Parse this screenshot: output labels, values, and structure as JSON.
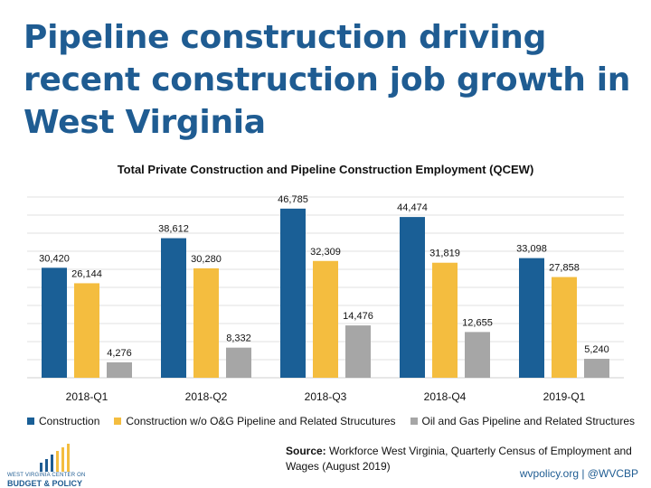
{
  "headline": "Pipeline construction driving recent construction job growth in West Virginia",
  "chart_data": {
    "type": "bar",
    "title": "Total Private Construction and Pipeline Construction Employment (QCEW)",
    "categories": [
      "2018-Q1",
      "2018-Q2",
      "2018-Q3",
      "2018-Q4",
      "2019-Q1"
    ],
    "series": [
      {
        "name": "Construction",
        "color": "#1a5f96",
        "values": [
          30420,
          38612,
          46785,
          44474,
          33098
        ],
        "labels": [
          "30,420",
          "38,612",
          "46,785",
          "44,474",
          "33,098"
        ]
      },
      {
        "name": "Construction w/o O&G Pipeline and Related Strucutures",
        "color": "#f4bd3f",
        "values": [
          26144,
          30280,
          32309,
          31819,
          27858
        ],
        "labels": [
          "26,144",
          "30,280",
          "32,309",
          "31,819",
          "27,858"
        ]
      },
      {
        "name": "Oil and Gas Pipeline and Related Structures",
        "color": "#a6a6a6",
        "values": [
          4276,
          8332,
          14476,
          12655,
          5240
        ],
        "labels": [
          "4,276",
          "8,332",
          "14,476",
          "12,655",
          "5,240"
        ]
      }
    ],
    "ylim": [
      0,
      50000
    ],
    "grid": true,
    "legend_position": "bottom"
  },
  "source": {
    "label": "Source:",
    "text": "Workforce West Virginia, Quarterly Census of Employment and Wages (August 2019)"
  },
  "footer": "wvpolicy.org | @WVCBP",
  "logo": {
    "line1": "WEST VIRGINIA CENTER ON",
    "line2": "BUDGET & POLICY",
    "colors": [
      "#1f5c92",
      "#f4bd3f"
    ]
  }
}
